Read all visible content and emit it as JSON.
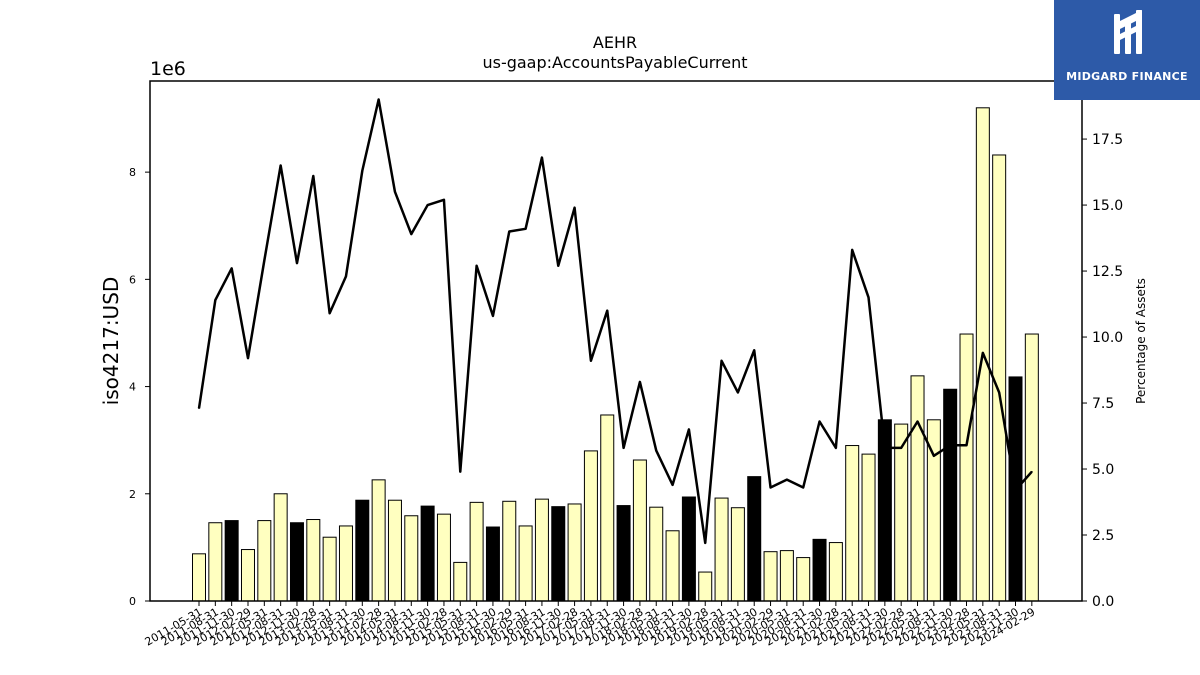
{
  "chart_data": {
    "type": "bar",
    "title": "AEHR",
    "subtitle": "us-gaap:AccountsPayableCurrent",
    "ylabel": "iso4217:USD",
    "y_multiplier_label": "1e6",
    "y2label": "Percentage of Assets",
    "ylim": [
      0,
      9700000
    ],
    "y2lim": [
      0,
      19.7
    ],
    "yticks": [
      "0",
      "2",
      "4",
      "6",
      "8"
    ],
    "y2ticks": [
      "0.0",
      "2.5",
      "5.0",
      "7.5",
      "10.0",
      "12.5",
      "15.0",
      "17.5"
    ],
    "grid": false,
    "categories": [
      "2011-05-31",
      "2011-08-31",
      "2011-11-30",
      "2012-02-29",
      "2012-05-31",
      "2012-08-31",
      "2012-11-30",
      "2013-02-28",
      "2013-05-31",
      "2013-08-31",
      "2013-11-30",
      "2014-02-28",
      "2014-05-31",
      "2014-08-31",
      "2014-11-30",
      "2015-02-28",
      "2015-05-31",
      "2015-08-31",
      "2015-11-30",
      "2016-02-29",
      "2016-05-31",
      "2016-08-31",
      "2016-11-30",
      "2017-02-28",
      "2017-05-31",
      "2017-08-31",
      "2017-11-30",
      "2018-02-28",
      "2018-05-31",
      "2018-08-31",
      "2018-11-30",
      "2019-02-28",
      "2019-05-31",
      "2019-08-31",
      "2019-11-30",
      "2020-02-29",
      "2020-05-31",
      "2020-08-31",
      "2020-11-30",
      "2021-02-28",
      "2021-05-31",
      "2021-08-31",
      "2021-11-30",
      "2022-02-28",
      "2022-05-31",
      "2022-08-31",
      "2022-11-30",
      "2023-02-28",
      "2023-05-31",
      "2023-08-31",
      "2023-11-30",
      "2024-02-29"
    ],
    "series": [
      {
        "kind": "bar",
        "axis": "left",
        "values": [
          880000,
          1460000,
          1500000,
          960000,
          1500000,
          2000000,
          1460000,
          1520000,
          1190000,
          1400000,
          1880000,
          2260000,
          1880000,
          1590000,
          1770000,
          1620000,
          720000,
          1840000,
          1380000,
          1860000,
          1400000,
          1900000,
          1760000,
          1810000,
          2800000,
          3470000,
          1780000,
          2630000,
          1750000,
          1310000,
          1940000,
          540000,
          1920000,
          1740000,
          2320000,
          920000,
          940000,
          810000,
          1150000,
          1090000,
          2900000,
          2740000,
          3380000,
          3300000,
          4200000,
          3380000,
          3950000,
          4980000,
          9200000,
          8320000,
          4180000,
          4980000
        ],
        "highlight": [
          false,
          false,
          true,
          false,
          false,
          false,
          true,
          false,
          false,
          false,
          true,
          false,
          false,
          false,
          true,
          false,
          false,
          false,
          true,
          false,
          false,
          false,
          true,
          false,
          false,
          false,
          true,
          false,
          false,
          false,
          true,
          false,
          false,
          false,
          true,
          false,
          false,
          false,
          true,
          false,
          false,
          false,
          true,
          false,
          false,
          false,
          true,
          false,
          false,
          false,
          true,
          false
        ]
      },
      {
        "kind": "line",
        "axis": "right",
        "values": [
          7.3,
          11.4,
          12.6,
          9.2,
          12.9,
          16.5,
          12.8,
          16.1,
          10.9,
          12.3,
          16.3,
          19.0,
          15.5,
          13.9,
          15.0,
          15.2,
          4.9,
          12.7,
          10.8,
          14.0,
          14.1,
          16.8,
          12.7,
          14.9,
          9.1,
          11.0,
          5.8,
          8.3,
          5.7,
          4.4,
          6.5,
          2.2,
          9.1,
          7.9,
          9.5,
          4.3,
          4.6,
          4.3,
          6.8,
          5.8,
          13.3,
          11.5,
          5.8,
          5.8,
          6.8,
          5.5,
          5.9,
          5.9,
          9.4,
          7.9,
          4.2,
          4.9
        ]
      }
    ],
    "colors": {
      "bar": "#ffffc0",
      "bar_highlight": "#000000",
      "line": "#000000"
    }
  },
  "logo": {
    "text": "MIDGARD FINANCE",
    "background": "#2d5aa8"
  }
}
